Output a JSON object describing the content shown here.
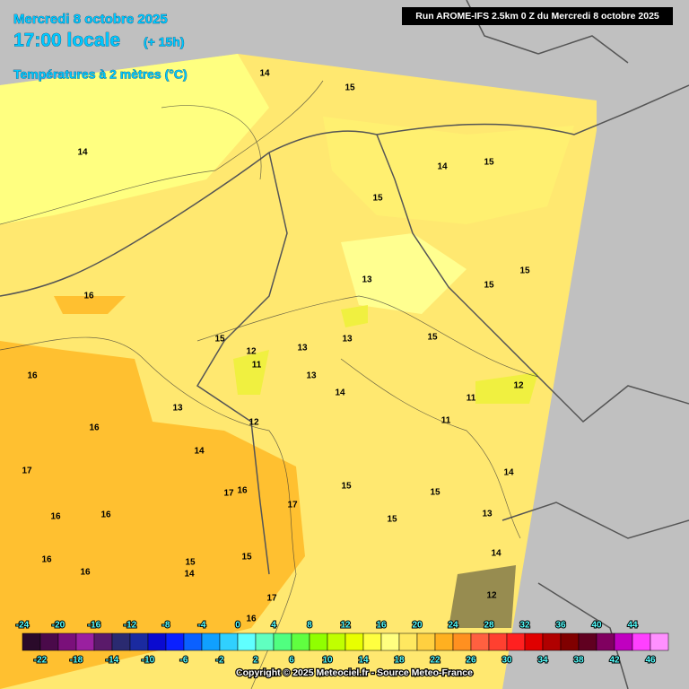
{
  "header": {
    "date": "Mercredi 8 octobre 2025",
    "time": "17:00 locale",
    "offset": "(+ 15h)",
    "field": "Températures à 2 mètres (°C)",
    "run": "Run AROME-IFS 2.5km 0 Z du Mercredi 8 octobre 2025"
  },
  "isotherm_labels": [
    14,
    15,
    14,
    14,
    15,
    15,
    15,
    13,
    15,
    16,
    15,
    12,
    13,
    13,
    15,
    11,
    13,
    16,
    14,
    11,
    12,
    13,
    12,
    11,
    16,
    14,
    17,
    14,
    17,
    16,
    15,
    15,
    17,
    16,
    16,
    13,
    15,
    16,
    16,
    15,
    14,
    15,
    14,
    17,
    16,
    12
  ],
  "scale": {
    "top_labels": [
      -24,
      -20,
      -16,
      -12,
      -8,
      -4,
      0,
      4,
      8,
      12,
      16,
      20,
      24,
      28,
      32,
      36,
      40,
      44
    ],
    "bottom_labels": [
      -22,
      -18,
      -14,
      -10,
      -6,
      -2,
      2,
      6,
      10,
      14,
      18,
      22,
      26,
      30,
      34,
      38,
      42,
      46
    ],
    "colors": [
      "#2a0a2a",
      "#4a0a4a",
      "#7a107a",
      "#9a20a0",
      "#5a1a6a",
      "#2a2a70",
      "#1a2aa0",
      "#0a0ad0",
      "#0a20ff",
      "#0a60ff",
      "#10a0ff",
      "#30d0ff",
      "#60ffff",
      "#60ffc0",
      "#50ff80",
      "#60ff40",
      "#90ff00",
      "#c0ff00",
      "#e8ff00",
      "#ffff40",
      "#ffff80",
      "#ffe860",
      "#ffd040",
      "#ffb020",
      "#ff9020",
      "#ff6040",
      "#ff4030",
      "#ff2020",
      "#e00000",
      "#b00000",
      "#800000",
      "#600020",
      "#800060",
      "#c000c0",
      "#ff40ff",
      "#ff90ff"
    ]
  },
  "copyright": "Copyright © 2025 Meteociel.fr - Source Meteo-France"
}
